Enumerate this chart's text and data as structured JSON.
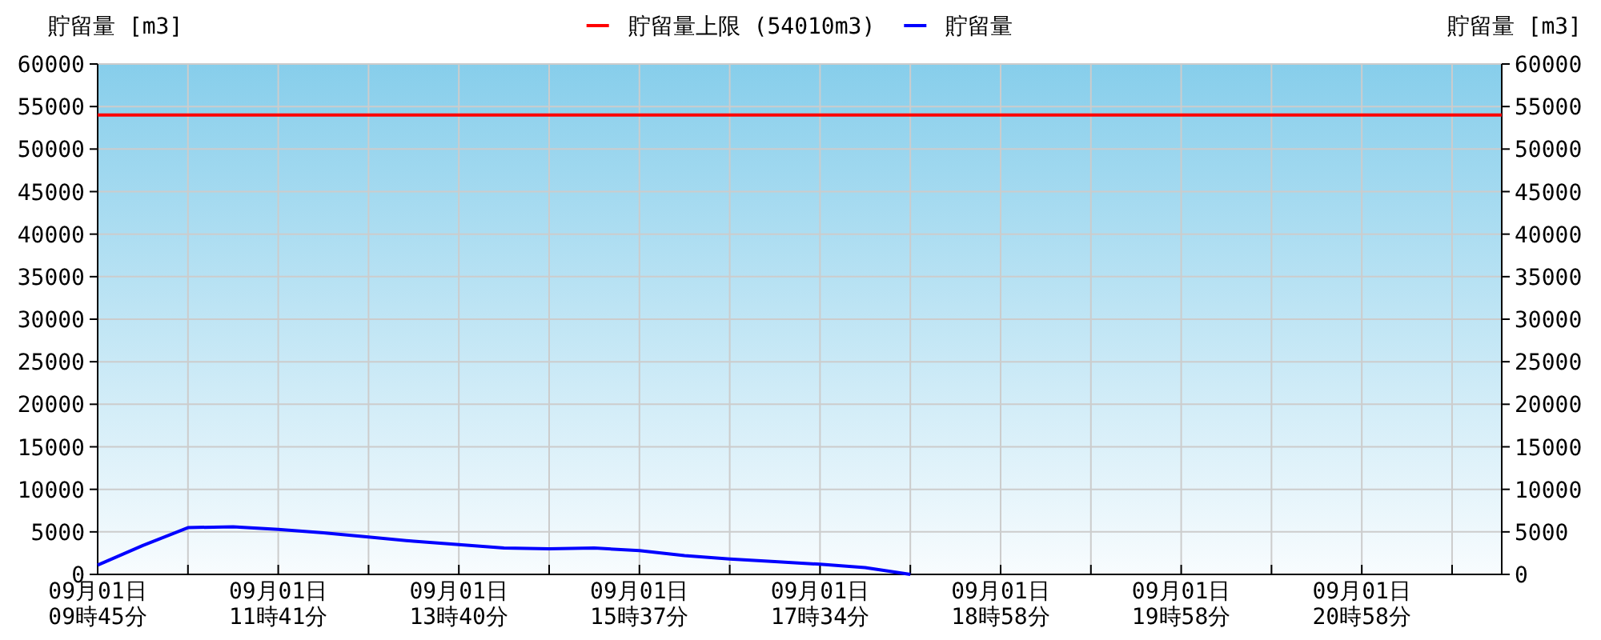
{
  "chart_data": {
    "type": "line",
    "ylabel": "貯留量 [m3]",
    "y2label": "貯留量 [m3]",
    "categories": [
      "09月01日\n09時45分",
      null,
      null,
      null,
      "09月01日\n11時41分",
      null,
      null,
      null,
      "09月01日\n13時40分",
      null,
      null,
      null,
      "09月01日\n15時37分",
      null,
      null,
      null,
      "09月01日\n17時34分",
      null,
      null,
      null,
      "09月01日\n18時58分",
      null,
      null,
      null,
      "09月01日\n19時58分",
      null,
      null,
      null,
      "09月01日\n20時58分",
      null,
      null,
      null
    ],
    "ylim": [
      0,
      60000
    ],
    "yticks": [
      0,
      5000,
      10000,
      15000,
      20000,
      25000,
      30000,
      35000,
      40000,
      45000,
      50000,
      55000,
      60000
    ],
    "y2lim": [
      0,
      60000
    ],
    "y2ticks": [
      0,
      5000,
      10000,
      15000,
      20000,
      25000,
      30000,
      35000,
      40000,
      45000,
      50000,
      55000,
      60000
    ],
    "grid": true,
    "legend": "top",
    "ref_lines": [
      {
        "axis": "y",
        "value": 54010,
        "label": "貯留量上限 (54010m3)",
        "color": "#ff0000"
      }
    ],
    "series": [
      {
        "name": "貯留量",
        "color": "#0000ff",
        "values": [
          1100,
          3400,
          5500,
          5600,
          5300,
          4900,
          4400,
          3900,
          3500,
          3100,
          3000,
          3100,
          2800,
          2200,
          1800,
          1500,
          1200,
          800,
          0,
          null,
          null,
          null,
          null,
          null,
          null,
          null,
          null,
          null,
          null,
          null,
          null,
          null
        ]
      }
    ]
  }
}
